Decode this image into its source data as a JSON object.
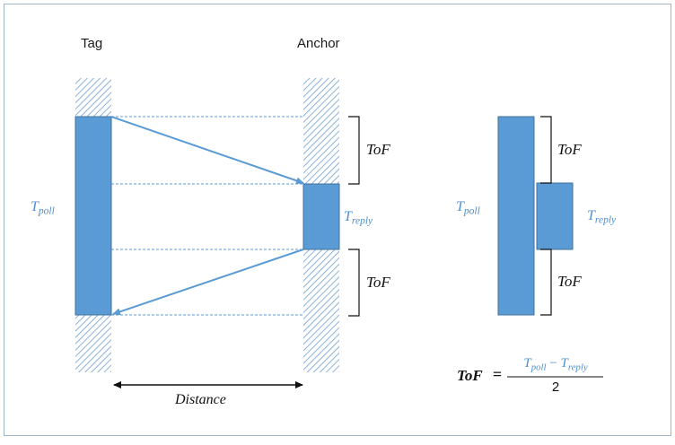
{
  "labels": {
    "tag": "Tag",
    "anchor": "Anchor",
    "distance": "Distance"
  },
  "symbols": {
    "tof": "ToF",
    "t_main": "T",
    "poll_sub": "poll",
    "reply_sub": "reply"
  },
  "formula": {
    "lhs": "ToF",
    "equals": "=",
    "num_t1": "T",
    "num_sub1": "poll",
    "minus": "−",
    "num_t2": "T",
    "num_sub2": "reply",
    "denominator": "2"
  },
  "colors": {
    "bar_fill": "#5b9bd5",
    "bar_stroke": "#41719c",
    "label_blue": "#4f8fcf",
    "frame": "#9eb6c8",
    "hatch": "#6f9ed1"
  }
}
